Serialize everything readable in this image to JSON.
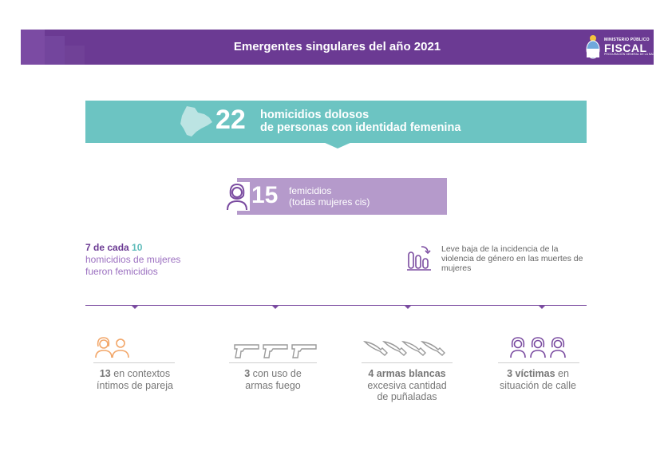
{
  "header": {
    "title": "Emergentes singulares del año 2021",
    "logo": {
      "line1": "MINISTERIO PÚBLICO",
      "line2": "FISCAL",
      "line3": "PROCURACIÓN GENERAL DE LA NACIÓN"
    }
  },
  "banner": {
    "number": "22",
    "line1": "homicidios dolosos",
    "line2": "de personas con identidad femenina"
  },
  "femicidios": {
    "number": "15",
    "line1": "femicidios",
    "line2": "(todas mujeres cis)"
  },
  "ratio": {
    "num": "7",
    "mid": " de cada ",
    "den": "10",
    "line2": "homicidios de mujeres",
    "line3": "fueron femicidios"
  },
  "trend": {
    "text": "Leve baja de la incidencia de la violencia de género en las muertes de mujeres"
  },
  "categories": [
    {
      "bold": "13",
      "rest": " en contextos",
      "line2": "íntimos de pareja",
      "icon": "couple-icon",
      "color": "#f2a76a"
    },
    {
      "bold": "3",
      "rest": " con uso de",
      "line2": "armas fuego",
      "icon": "gun-icon",
      "color": "#9a9a9a"
    },
    {
      "bold": "4 armas blancas",
      "rest": "",
      "line2": "excesiva cantidad",
      "line3": "de puñaladas",
      "icon": "knife-icon",
      "color": "#9a9a9a"
    },
    {
      "bold": "3 víctimas",
      "rest": " en",
      "line2": "situación de calle",
      "icon": "woman-icon",
      "color": "#7a4ba0"
    }
  ],
  "colors": {
    "purple": "#6b3a93",
    "teal": "#6cc4c2",
    "lilac": "#b59acb",
    "orange": "#f2a76a"
  }
}
